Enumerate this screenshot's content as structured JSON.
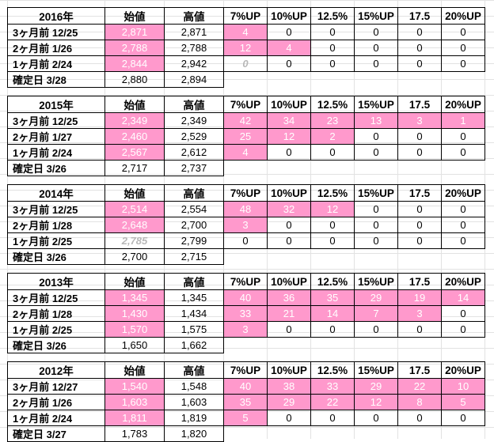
{
  "columns": [
    "始値",
    "高値",
    "7%UP",
    "10%UP",
    "12.5%",
    "15%UP",
    "17.5",
    "20%UP"
  ],
  "colors": {
    "highlight": "#ff99cc",
    "ghost_text": "#b8b8b8",
    "grid": "#e2e2e2"
  },
  "blocks": [
    {
      "year": "2016年",
      "rows": [
        {
          "label": "3ヶ月前 12/25",
          "open": "2,871",
          "high": "2,871",
          "up": [
            "4",
            "0",
            "0",
            "0",
            "0",
            "0"
          ]
        },
        {
          "label": "2ヶ月前  1/26",
          "open": "2,788",
          "high": "2,788",
          "up": [
            "12",
            "4",
            "0",
            "0",
            "0",
            "0"
          ]
        },
        {
          "label": "1ヶ月前  2/24",
          "open": "2,844",
          "high": "2,942",
          "up": [
            "0",
            "0",
            "0",
            "0",
            "0",
            "0"
          ]
        },
        {
          "label": "確定日  3/28",
          "open": "2,880",
          "high": "2,894"
        }
      ]
    },
    {
      "year": "2015年",
      "rows": [
        {
          "label": "3ヶ月前 12/25",
          "open": "2,349",
          "high": "2,349",
          "up": [
            "42",
            "34",
            "23",
            "13",
            "3",
            "1"
          ]
        },
        {
          "label": "2ヶ月前  1/27",
          "open": "2,460",
          "high": "2,529",
          "up": [
            "25",
            "12",
            "2",
            "0",
            "0",
            "0"
          ]
        },
        {
          "label": "1ヶ月前  2/24",
          "open": "2,567",
          "high": "2,612",
          "up": [
            "4",
            "0",
            "0",
            "0",
            "0",
            "0"
          ]
        },
        {
          "label": "確定日  3/26",
          "open": "2,717",
          "high": "2,737"
        }
      ]
    },
    {
      "year": "2014年",
      "rows": [
        {
          "label": "3ヶ月前 12/25",
          "open": "2,514",
          "high": "2,554",
          "up": [
            "48",
            "32",
            "12",
            "0",
            "0",
            "0"
          ]
        },
        {
          "label": "2ヶ月前  1/28",
          "open": "2,648",
          "high": "2,700",
          "up": [
            "3",
            "0",
            "0",
            "0",
            "0",
            "0"
          ]
        },
        {
          "label": "1ヶ月前  2/25",
          "open": "2,785",
          "high": "2,799",
          "up": [
            "0",
            "0",
            "0",
            "0",
            "0",
            "0"
          ]
        },
        {
          "label": "確定日  3/26",
          "open": "2,700",
          "high": "2,715"
        }
      ]
    },
    {
      "year": "2013年",
      "rows": [
        {
          "label": "3ヶ月前 12/25",
          "open": "1,345",
          "high": "1,345",
          "up": [
            "40",
            "36",
            "35",
            "29",
            "19",
            "14"
          ]
        },
        {
          "label": "2ヶ月前  1/28",
          "open": "1,430",
          "high": "1,434",
          "up": [
            "33",
            "21",
            "14",
            "7",
            "3",
            "0"
          ]
        },
        {
          "label": "1ヶ月前  2/25",
          "open": "1,570",
          "high": "1,575",
          "up": [
            "3",
            "0",
            "0",
            "0",
            "0",
            "0"
          ]
        },
        {
          "label": "確定日  3/26",
          "open": "1,650",
          "high": "1,662"
        }
      ]
    },
    {
      "year": "2012年",
      "rows": [
        {
          "label": "3ヶ月前 12/27",
          "open": "1,540",
          "high": "1,548",
          "up": [
            "40",
            "38",
            "33",
            "29",
            "22",
            "10"
          ]
        },
        {
          "label": "2ヶ月前  1/26",
          "open": "1,603",
          "high": "1,603",
          "up": [
            "35",
            "29",
            "22",
            "12",
            "8",
            "5"
          ]
        },
        {
          "label": "1ヶ月前  2/24",
          "open": "1,811",
          "high": "1,819",
          "up": [
            "5",
            "0",
            "0",
            "0",
            "0",
            "0"
          ]
        },
        {
          "label": "確定日  3/27",
          "open": "1,783",
          "high": "1,820"
        }
      ]
    }
  ]
}
